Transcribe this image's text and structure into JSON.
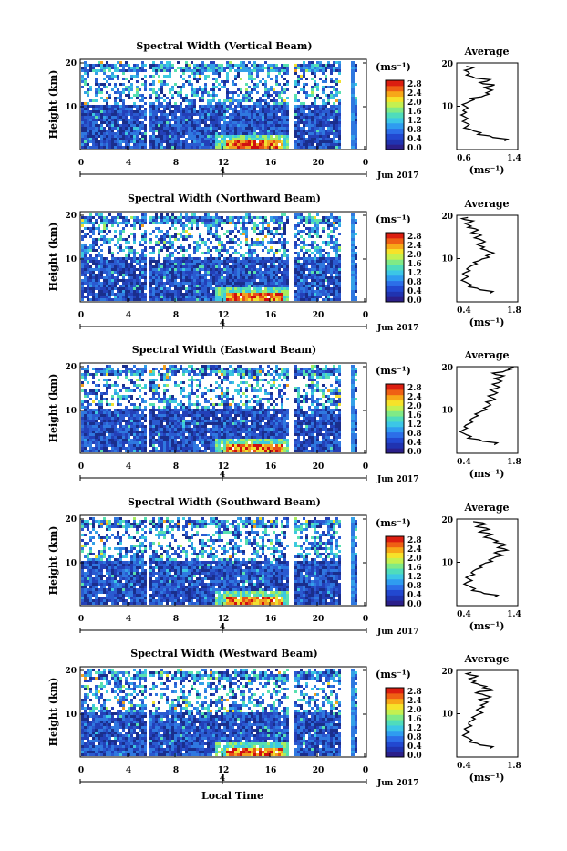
{
  "chart_data": [
    {
      "type": "heatmap",
      "title": "Spectral Width (Vertical Beam)",
      "ylabel": "Height (km)",
      "colorbar_unit": "(ms⁻¹)",
      "avg": {
        "title": "Average",
        "unit": "(ms⁻¹)",
        "xlim": [
          0.6,
          1.4
        ],
        "xticks": [
          "0.6",
          "1.4"
        ],
        "profile": [
          [
            1.25,
            2
          ],
          [
            1.05,
            2.8
          ],
          [
            0.9,
            3.5
          ],
          [
            0.8,
            4.3
          ],
          [
            0.72,
            5
          ],
          [
            0.74,
            5.8
          ],
          [
            0.7,
            6.5
          ],
          [
            0.72,
            7.2
          ],
          [
            0.68,
            8
          ],
          [
            0.7,
            8.6
          ],
          [
            0.73,
            9.3
          ],
          [
            0.69,
            10
          ],
          [
            0.76,
            10.8
          ],
          [
            0.8,
            11.5
          ],
          [
            0.95,
            12.2
          ],
          [
            1.0,
            12.8
          ],
          [
            1.05,
            13.4
          ],
          [
            0.98,
            14
          ],
          [
            1.08,
            14.7
          ],
          [
            0.92,
            15.2
          ],
          [
            1.02,
            15.8
          ],
          [
            0.82,
            16.5
          ],
          [
            0.75,
            17.2
          ],
          [
            0.72,
            18
          ],
          [
            0.8,
            18.6
          ],
          [
            0.7,
            19.2
          ]
        ]
      }
    },
    {
      "type": "heatmap",
      "title": "Spectral Width (Northward Beam)",
      "ylabel": "Height (km)",
      "colorbar_unit": "(ms⁻¹)",
      "avg": {
        "title": "Average",
        "unit": "(ms⁻¹)",
        "xlim": [
          0.4,
          1.8
        ],
        "xticks": [
          "0.4",
          "1.8"
        ],
        "profile": [
          [
            1.2,
            2
          ],
          [
            0.9,
            2.8
          ],
          [
            0.72,
            3.5
          ],
          [
            0.62,
            4.3
          ],
          [
            0.55,
            5
          ],
          [
            0.62,
            5.8
          ],
          [
            0.58,
            6.5
          ],
          [
            0.66,
            7.2
          ],
          [
            0.72,
            8
          ],
          [
            0.82,
            8.8
          ],
          [
            0.95,
            9.5
          ],
          [
            1.1,
            10.3
          ],
          [
            1.22,
            11
          ],
          [
            1.1,
            11.6
          ],
          [
            1.0,
            12.3
          ],
          [
            0.88,
            13
          ],
          [
            1.02,
            13.6
          ],
          [
            0.95,
            14.2
          ],
          [
            0.85,
            14.8
          ],
          [
            0.92,
            15.4
          ],
          [
            0.78,
            16
          ],
          [
            0.85,
            16.6
          ],
          [
            0.7,
            17.2
          ],
          [
            0.62,
            17.8
          ],
          [
            0.75,
            18.4
          ],
          [
            0.55,
            19
          ],
          [
            0.7,
            19.5
          ]
        ]
      }
    },
    {
      "type": "heatmap",
      "title": "Spectral Width (Eastward Beam)",
      "ylabel": "Height (km)",
      "colorbar_unit": "(ms⁻¹)",
      "avg": {
        "title": "Average",
        "unit": "(ms⁻¹)",
        "xlim": [
          0.4,
          1.8
        ],
        "xticks": [
          "0.4",
          "1.8"
        ],
        "profile": [
          [
            1.3,
            2
          ],
          [
            0.95,
            2.8
          ],
          [
            0.7,
            3.5
          ],
          [
            0.58,
            4.3
          ],
          [
            0.52,
            5
          ],
          [
            0.6,
            5.8
          ],
          [
            0.65,
            6.5
          ],
          [
            0.72,
            7.2
          ],
          [
            0.78,
            8
          ],
          [
            0.85,
            8.7
          ],
          [
            0.95,
            9.4
          ],
          [
            1.05,
            10.1
          ],
          [
            1.15,
            10.8
          ],
          [
            1.1,
            11.5
          ],
          [
            1.25,
            12.2
          ],
          [
            1.15,
            12.9
          ],
          [
            1.3,
            13.6
          ],
          [
            1.2,
            14.3
          ],
          [
            1.35,
            15
          ],
          [
            1.25,
            15.6
          ],
          [
            1.4,
            16.3
          ],
          [
            1.3,
            17
          ],
          [
            1.45,
            17.6
          ],
          [
            1.25,
            18.2
          ],
          [
            1.5,
            18.8
          ],
          [
            1.6,
            19.4
          ],
          [
            1.75,
            19.8
          ]
        ]
      }
    },
    {
      "type": "heatmap",
      "title": "Spectral Width (Southward Beam)",
      "ylabel": "Height (km)",
      "colorbar_unit": "(ms⁻¹)",
      "avg": {
        "title": "Average",
        "unit": "(ms⁻¹)",
        "xlim": [
          0.4,
          1.4
        ],
        "xticks": [
          "0.4",
          "1.4"
        ],
        "profile": [
          [
            1.05,
            2
          ],
          [
            0.82,
            2.8
          ],
          [
            0.68,
            3.5
          ],
          [
            0.6,
            4.3
          ],
          [
            0.55,
            5
          ],
          [
            0.62,
            5.8
          ],
          [
            0.58,
            6.5
          ],
          [
            0.66,
            7.2
          ],
          [
            0.7,
            8
          ],
          [
            0.78,
            8.8
          ],
          [
            0.85,
            9.5
          ],
          [
            0.95,
            10.2
          ],
          [
            1.02,
            10.9
          ],
          [
            1.12,
            11.6
          ],
          [
            1.05,
            12.2
          ],
          [
            1.2,
            12.8
          ],
          [
            1.1,
            13.4
          ],
          [
            1.18,
            14
          ],
          [
            1.05,
            14.6
          ],
          [
            0.98,
            15.2
          ],
          [
            0.88,
            15.8
          ],
          [
            0.95,
            16.4
          ],
          [
            0.8,
            17
          ],
          [
            0.9,
            17.6
          ],
          [
            0.75,
            18.2
          ],
          [
            0.85,
            18.8
          ],
          [
            0.7,
            19.4
          ]
        ]
      }
    },
    {
      "type": "heatmap",
      "title": "Spectral Width (Westward Beam)",
      "ylabel": "Height (km)",
      "colorbar_unit": "(ms⁻¹)",
      "avg": {
        "title": "Average",
        "unit": "(ms⁻¹)",
        "xlim": [
          0.4,
          1.8
        ],
        "xticks": [
          "0.4",
          "1.8"
        ],
        "profile": [
          [
            1.2,
            2
          ],
          [
            0.9,
            2.8
          ],
          [
            0.72,
            3.5
          ],
          [
            0.64,
            4.3
          ],
          [
            0.58,
            5
          ],
          [
            0.66,
            5.8
          ],
          [
            0.62,
            6.5
          ],
          [
            0.7,
            7.2
          ],
          [
            0.72,
            8
          ],
          [
            0.78,
            8.8
          ],
          [
            0.86,
            9.5
          ],
          [
            0.95,
            10.2
          ],
          [
            0.9,
            10.9
          ],
          [
            0.98,
            11.6
          ],
          [
            1.08,
            12.3
          ],
          [
            0.95,
            13
          ],
          [
            1.15,
            13.6
          ],
          [
            1.02,
            14.2
          ],
          [
            0.88,
            14.8
          ],
          [
            1.2,
            15.4
          ],
          [
            1.05,
            16
          ],
          [
            0.9,
            16.6
          ],
          [
            0.8,
            17.2
          ],
          [
            0.72,
            17.8
          ],
          [
            0.85,
            18.4
          ],
          [
            0.65,
            19
          ],
          [
            0.78,
            19.5
          ]
        ]
      }
    }
  ],
  "shared": {
    "yticks": [
      "20",
      "10"
    ],
    "xticks": [
      "0",
      "4",
      "8",
      "12",
      "16",
      "20",
      "0"
    ],
    "date_tick": "4",
    "date_label": "Jun 2017",
    "colorbar_ticks": [
      "2.8",
      "2.4",
      "2.0",
      "1.6",
      "1.2",
      "0.8",
      "0.4",
      "0.0"
    ],
    "xlabel": "Local Time",
    "colors": {
      "low": "#2a3aa8",
      "mid": "#2a8bd8",
      "high": "#f0e030",
      "peak": "#e02010",
      "frame": "#000000",
      "gap": "#ffffff"
    }
  }
}
